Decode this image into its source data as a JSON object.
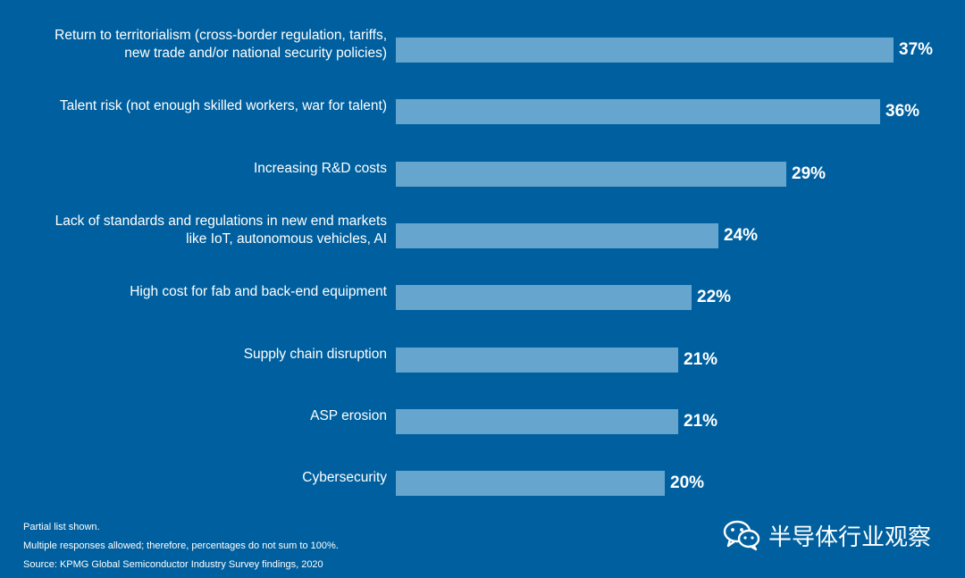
{
  "chart_data": {
    "type": "bar",
    "orientation": "horizontal",
    "categories": [
      [
        "Return to territorialism (cross-border regulation, tariffs,",
        "new trade and/or national security policies)"
      ],
      [
        "Talent risk (not enough skilled workers, war for talent)"
      ],
      [
        "Increasing R&D costs"
      ],
      [
        "Lack of standards and regulations in new end markets",
        "like IoT, autonomous vehicles, AI"
      ],
      [
        "High cost for fab and back-end equipment"
      ],
      [
        "Supply chain disruption"
      ],
      [
        "ASP erosion"
      ],
      [
        "Cybersecurity"
      ]
    ],
    "values": [
      37,
      36,
      29,
      24,
      22,
      21,
      21,
      20
    ],
    "value_labels": [
      "37%",
      "36%",
      "29%",
      "24%",
      "22%",
      "21%",
      "21%",
      "20%"
    ],
    "value_suffix": "%",
    "xlim": [
      0,
      37
    ],
    "grid": false,
    "title": "",
    "xlabel": "",
    "ylabel": ""
  },
  "colors": {
    "background": "#00609f",
    "bar": "#66a6ce",
    "text": "#ffffff"
  },
  "footnotes": [
    "Partial list shown.",
    "Multiple responses allowed; therefore, percentages do not sum to 100%.",
    "Source: KPMG Global Semiconductor Industry Survey findings, 2020"
  ],
  "watermark": {
    "icon": "wechat-icon",
    "text": "半导体行业观察"
  }
}
